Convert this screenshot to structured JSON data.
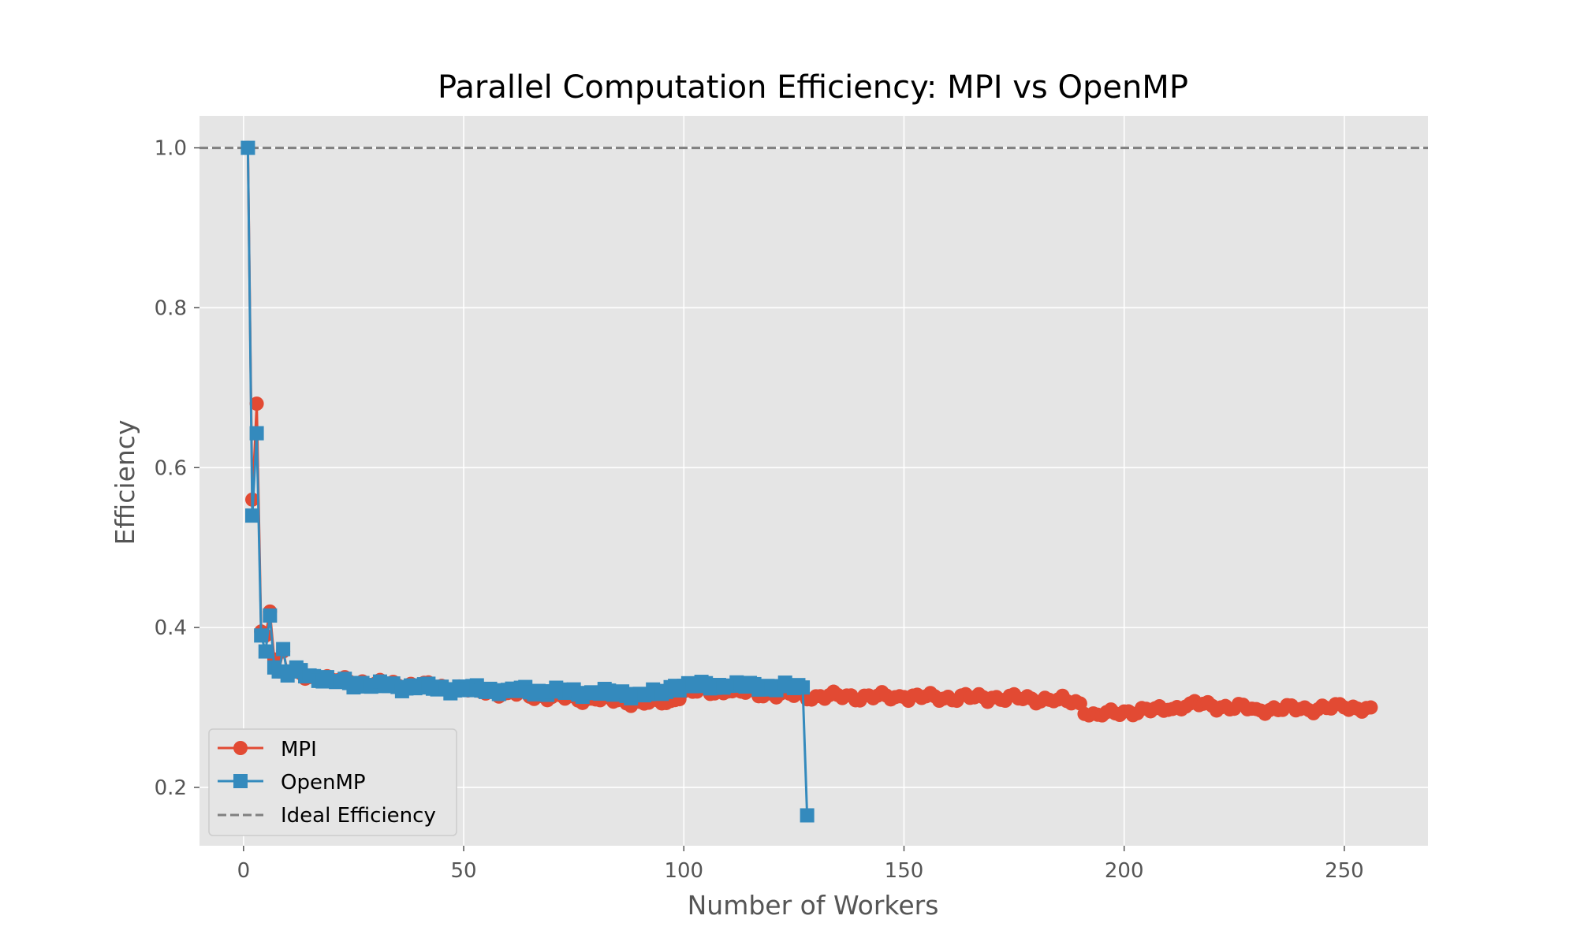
{
  "chart_data": {
    "type": "line",
    "title": "Parallel Computation Efficiency: MPI vs OpenMP",
    "xlabel": "Number of Workers",
    "ylabel": "Efficiency",
    "xlim": [
      -10,
      269
    ],
    "ylim": [
      0.127,
      1.04
    ],
    "xticks": [
      0,
      50,
      100,
      150,
      200,
      250
    ],
    "yticks": [
      0.2,
      0.4,
      0.6,
      0.8,
      1.0
    ],
    "xtick_labels": [
      "0",
      "50",
      "100",
      "150",
      "200",
      "250"
    ],
    "ytick_labels": [
      "0.2",
      "0.4",
      "0.6",
      "0.8",
      "1.0"
    ],
    "grid": true,
    "legend_position": "lower-left",
    "ideal_line": {
      "name": "Ideal Efficiency",
      "y": 1.0,
      "color": "#808080",
      "style": "dashed"
    },
    "series": [
      {
        "name": "MPI",
        "marker": "circle",
        "color": "#E24A33",
        "anchors": [
          [
            1,
            1.0
          ],
          [
            2,
            0.56
          ],
          [
            3,
            0.68
          ],
          [
            4,
            0.395
          ],
          [
            5,
            0.39
          ],
          [
            6,
            0.42
          ],
          [
            7,
            0.36
          ],
          [
            8,
            0.345
          ],
          [
            9,
            0.37
          ],
          [
            10,
            0.345
          ],
          [
            12,
            0.345
          ],
          [
            15,
            0.338
          ],
          [
            20,
            0.335
          ],
          [
            30,
            0.33
          ],
          [
            40,
            0.327
          ],
          [
            50,
            0.323
          ],
          [
            60,
            0.318
          ],
          [
            70,
            0.313
          ],
          [
            80,
            0.31
          ],
          [
            90,
            0.307
          ],
          [
            95,
            0.305
          ],
          [
            97,
            0.308
          ],
          [
            100,
            0.32
          ],
          [
            110,
            0.32
          ],
          [
            120,
            0.317
          ],
          [
            130,
            0.314
          ],
          [
            150,
            0.313
          ],
          [
            170,
            0.312
          ],
          [
            185,
            0.31
          ],
          [
            190,
            0.305
          ],
          [
            192,
            0.29
          ],
          [
            195,
            0.29
          ],
          [
            200,
            0.295
          ],
          [
            210,
            0.297
          ],
          [
            215,
            0.305
          ],
          [
            220,
            0.302
          ],
          [
            230,
            0.298
          ],
          [
            240,
            0.298
          ],
          [
            250,
            0.3
          ],
          [
            256,
            0.3
          ]
        ]
      },
      {
        "name": "OpenMP",
        "marker": "square",
        "color": "#348ABD",
        "anchors": [
          [
            1,
            1.0
          ],
          [
            2,
            0.54
          ],
          [
            3,
            0.643
          ],
          [
            4,
            0.39
          ],
          [
            5,
            0.37
          ],
          [
            6,
            0.415
          ],
          [
            7,
            0.35
          ],
          [
            8,
            0.345
          ],
          [
            9,
            0.373
          ],
          [
            10,
            0.34
          ],
          [
            12,
            0.35
          ],
          [
            15,
            0.34
          ],
          [
            20,
            0.333
          ],
          [
            30,
            0.328
          ],
          [
            40,
            0.325
          ],
          [
            50,
            0.323
          ],
          [
            60,
            0.322
          ],
          [
            70,
            0.32
          ],
          [
            80,
            0.318
          ],
          [
            90,
            0.317
          ],
          [
            95,
            0.317
          ],
          [
            98,
            0.327
          ],
          [
            110,
            0.327
          ],
          [
            120,
            0.326
          ],
          [
            127,
            0.325
          ],
          [
            128,
            0.165
          ]
        ]
      }
    ]
  }
}
